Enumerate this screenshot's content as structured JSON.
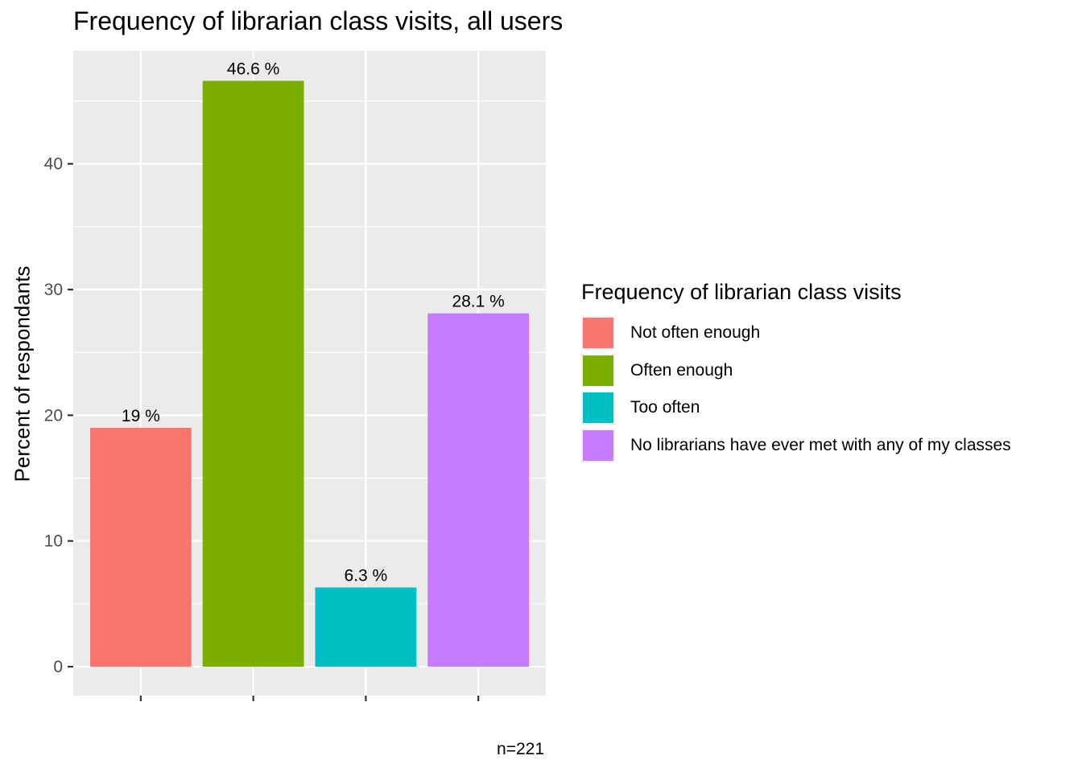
{
  "chart_data": {
    "type": "bar",
    "title": "Frequency of librarian class visits,  all users",
    "ylabel": "Percent of respondants",
    "xlabel": "",
    "caption": "n=221",
    "ylim": [
      -2.3,
      49
    ],
    "yticks": [
      0,
      10,
      20,
      30,
      40
    ],
    "categories": [
      "Not often enough",
      "Often enough",
      "Too often",
      "No librarians have ever met with any of my classes"
    ],
    "values": [
      19,
      46.6,
      6.3,
      28.1
    ],
    "data_labels": [
      "19 %",
      "46.6 %",
      "6.3 %",
      "28.1 %"
    ],
    "colors": [
      "#F8766D",
      "#7CAE00",
      "#00BFC4",
      "#C77CFF"
    ],
    "panel_background": "#EBEBEB",
    "gridline_color": "#FFFFFF",
    "grid": true,
    "legend": {
      "title": "Frequency of librarian class visits",
      "placement": "right"
    }
  }
}
